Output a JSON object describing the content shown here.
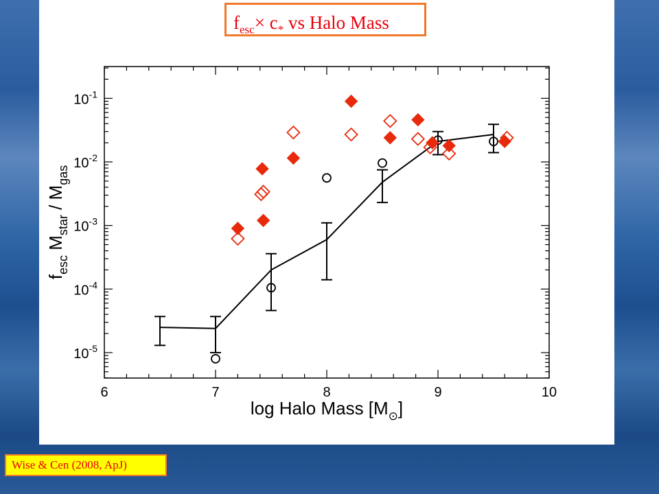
{
  "slide": {
    "title_main": "f",
    "title_sub": "esc",
    "title_rest": "× c",
    "title_star": "*",
    "title_tail": " vs Halo Mass",
    "citation": "Wise & Cen (2008, ApJ)"
  },
  "chart_data": {
    "type": "scatter",
    "x_ticks": [
      "6",
      "7",
      "8",
      "9",
      "10"
    ],
    "y_ticks": [
      "10^-5",
      "10^-4",
      "10^-3",
      "10^-2",
      "10^-1"
    ],
    "xlabel_main": "log Halo Mass [M",
    "xlabel_sub": "⊙",
    "xlabel_end": "]",
    "ylabel_f": "f",
    "ylabel_esc": "esc",
    "ylabel_m1": " M",
    "ylabel_star": "star",
    "ylabel_div": " / M",
    "ylabel_gas": "gas",
    "xlim": [
      6,
      10
    ],
    "ylim_log10": [
      -5.4,
      -0.5
    ],
    "y_scale": "log",
    "colors": {
      "diamond": "#e8290b",
      "line": "#000000",
      "circle": "#000000"
    },
    "series": [
      {
        "marker": "line-with-errorbars",
        "points": [
          {
            "x": 6.5,
            "y": 2.5e-05,
            "lo": 1.3e-05,
            "hi": 3.7e-05
          },
          {
            "x": 7.0,
            "y": 2.4e-05,
            "lo": 1e-05,
            "hi": 3.7e-05
          },
          {
            "x": 7.5,
            "y": 0.0002,
            "lo": 4.6e-05,
            "hi": 0.00036
          },
          {
            "x": 8.0,
            "y": 0.0006,
            "lo": 0.00014,
            "hi": 0.0011
          },
          {
            "x": 8.5,
            "y": 0.0048,
            "lo": 0.0023,
            "hi": 0.0075
          },
          {
            "x": 9.0,
            "y": 0.021,
            "lo": 0.013,
            "hi": 0.03
          },
          {
            "x": 9.5,
            "y": 0.027,
            "lo": 0.014,
            "hi": 0.039
          }
        ]
      },
      {
        "marker": "open-circle",
        "points": [
          {
            "x": 7.0,
            "y": 8e-06
          },
          {
            "x": 7.5,
            "y": 0.000105
          },
          {
            "x": 8.0,
            "y": 0.0056
          },
          {
            "x": 8.5,
            "y": 0.0096
          },
          {
            "x": 9.0,
            "y": 0.022
          },
          {
            "x": 9.5,
            "y": 0.021
          }
        ]
      },
      {
        "marker": "filled-diamond",
        "points": [
          {
            "x": 7.2,
            "y": 0.0009
          },
          {
            "x": 7.42,
            "y": 0.0078
          },
          {
            "x": 7.43,
            "y": 0.0012
          },
          {
            "x": 7.7,
            "y": 0.0115
          },
          {
            "x": 8.22,
            "y": 0.09
          },
          {
            "x": 8.57,
            "y": 0.024
          },
          {
            "x": 8.82,
            "y": 0.046
          },
          {
            "x": 8.95,
            "y": 0.02
          },
          {
            "x": 9.1,
            "y": 0.018
          },
          {
            "x": 9.6,
            "y": 0.021
          }
        ]
      },
      {
        "marker": "open-diamond",
        "points": [
          {
            "x": 7.2,
            "y": 0.00062
          },
          {
            "x": 7.41,
            "y": 0.0031
          },
          {
            "x": 7.43,
            "y": 0.0034
          },
          {
            "x": 7.7,
            "y": 0.029
          },
          {
            "x": 8.22,
            "y": 0.027
          },
          {
            "x": 8.57,
            "y": 0.044
          },
          {
            "x": 8.82,
            "y": 0.023
          },
          {
            "x": 8.93,
            "y": 0.017
          },
          {
            "x": 9.1,
            "y": 0.0135
          },
          {
            "x": 9.62,
            "y": 0.024
          }
        ]
      }
    ]
  }
}
